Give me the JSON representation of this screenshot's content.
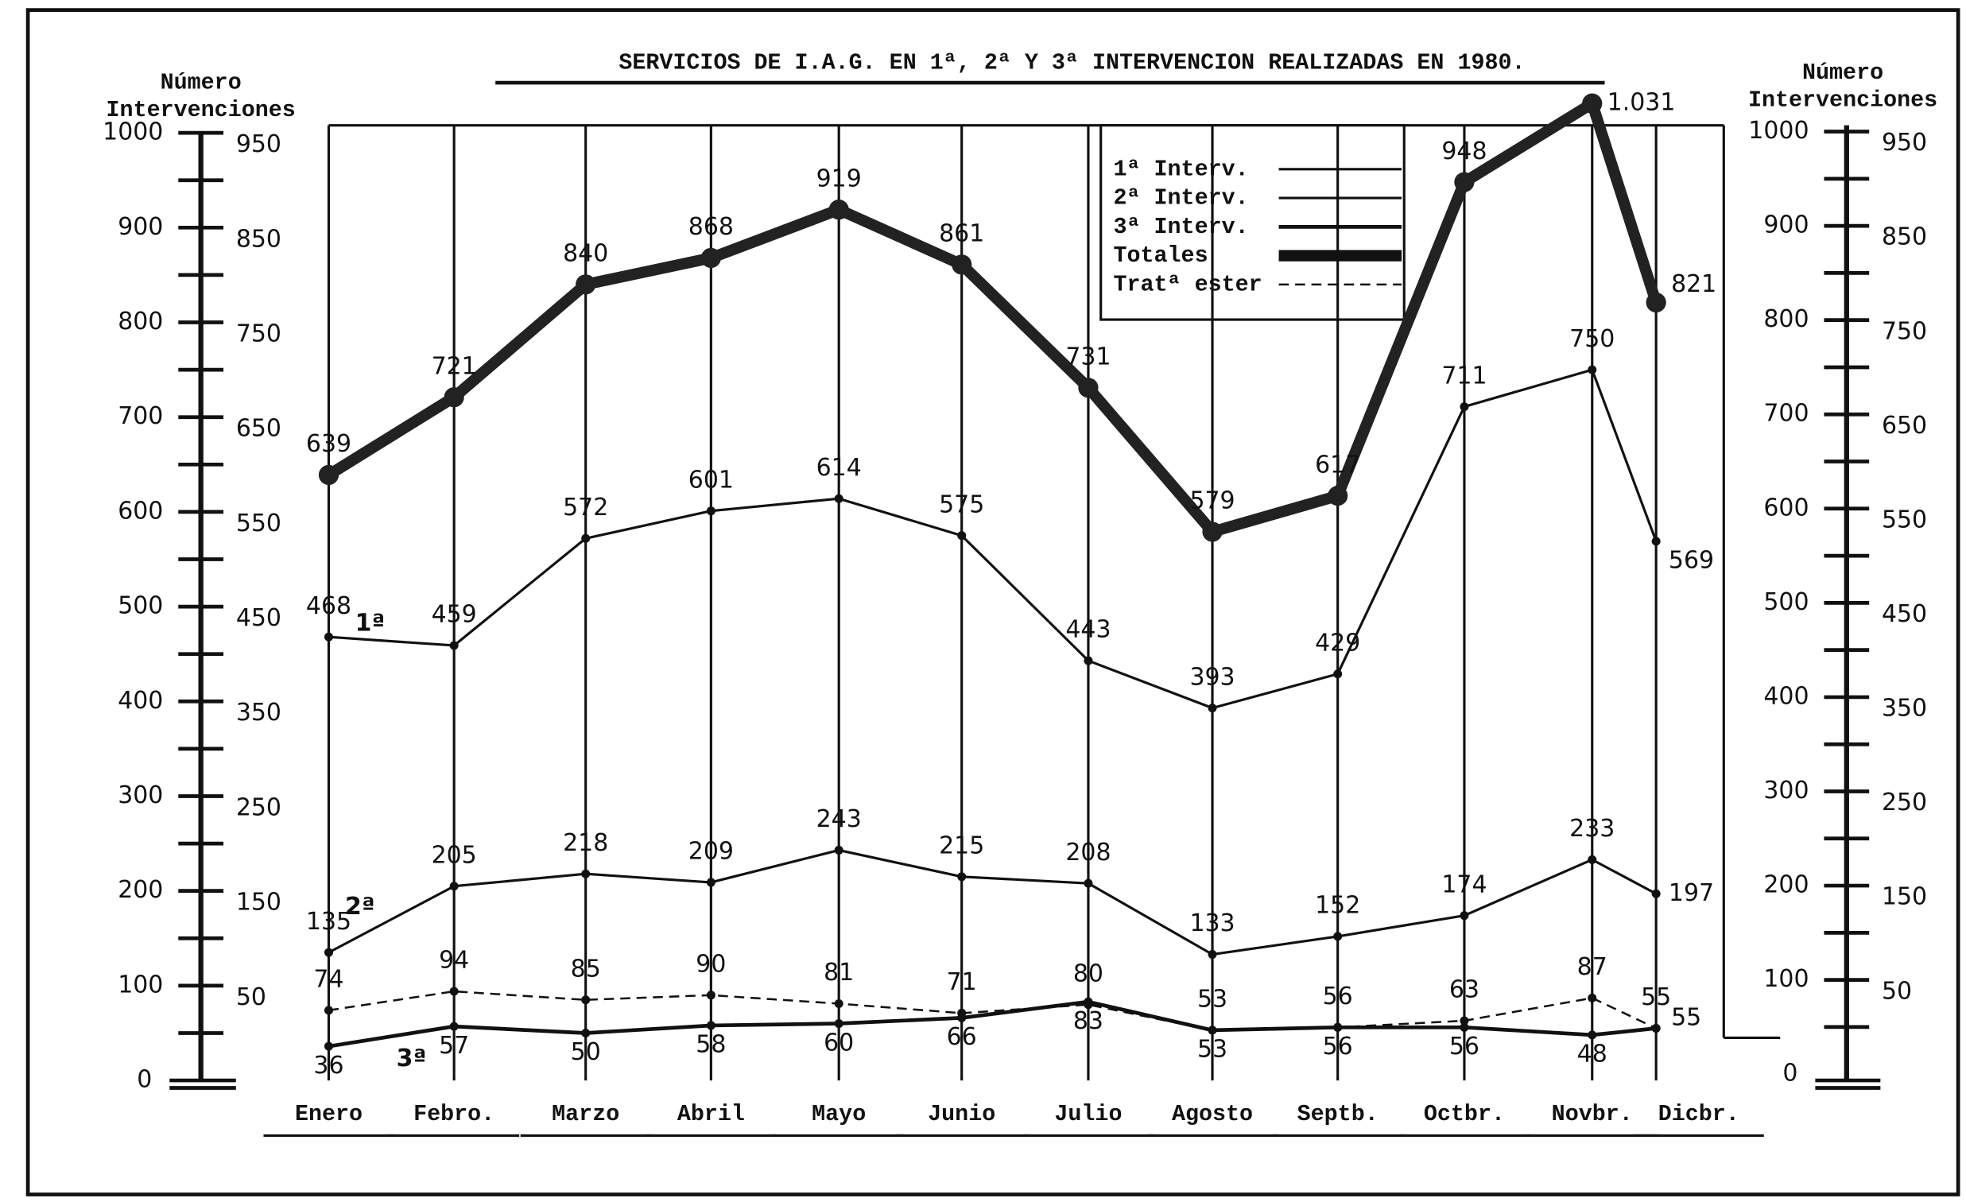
{
  "chart_data": {
    "type": "line",
    "title": "SERVICIOS DE I.A.G. EN 1ª, 2ª Y 3ª INTERVENCION REALIZADAS EN 1980.",
    "y_label": [
      "Número",
      "Intervenciones"
    ],
    "y2_label": [
      "Número",
      "Intervenciones"
    ],
    "categories": [
      "Enero",
      "Febro.",
      "Marzo",
      "Abril",
      "Mayo",
      "Junio",
      "Julio",
      "Agosto",
      "Septb.",
      "Octbr.",
      "Novbr.",
      "Dicbr."
    ],
    "series": [
      {
        "name": "1ª Interv.",
        "color": "#111111",
        "values": [
          468,
          459,
          572,
          601,
          614,
          575,
          443,
          393,
          429,
          711,
          750,
          569
        ]
      },
      {
        "name": "2ª Interv.",
        "color": "#111111",
        "values": [
          135,
          205,
          218,
          209,
          243,
          215,
          208,
          133,
          152,
          174,
          233,
          197
        ]
      },
      {
        "name": "3ª Interv.",
        "color": "#111111",
        "values": [
          36,
          57,
          50,
          58,
          60,
          66,
          83,
          53,
          56,
          56,
          48,
          55
        ]
      },
      {
        "name": "Totales",
        "color": "#222222",
        "values": [
          639,
          721,
          840,
          868,
          919,
          861,
          731,
          579,
          617,
          948,
          1031,
          821
        ],
        "value_labels": [
          "639",
          "721",
          "840",
          "868",
          "919",
          "861",
          "731",
          "579",
          "617",
          "948",
          "1.031",
          "821"
        ]
      },
      {
        "name": "Tratª ester",
        "color": "#111111",
        "dashed": true,
        "values": [
          74,
          94,
          85,
          90,
          81,
          71,
          80,
          53,
          56,
          63,
          87,
          55
        ]
      }
    ],
    "annotations": [
      "1ª",
      "2ª",
      "3ª"
    ],
    "ylim": [
      0,
      1000
    ],
    "y2lim": [
      0,
      1000
    ],
    "yticks": [
      0,
      50,
      100,
      150,
      200,
      250,
      300,
      350,
      400,
      450,
      500,
      550,
      600,
      650,
      700,
      750,
      800,
      850,
      900,
      950,
      1000
    ],
    "y2ticks": [
      0,
      50,
      100,
      150,
      200,
      250,
      300,
      350,
      400,
      450,
      500,
      550,
      600,
      650,
      700,
      750,
      800,
      850,
      900,
      950,
      1000
    ]
  }
}
